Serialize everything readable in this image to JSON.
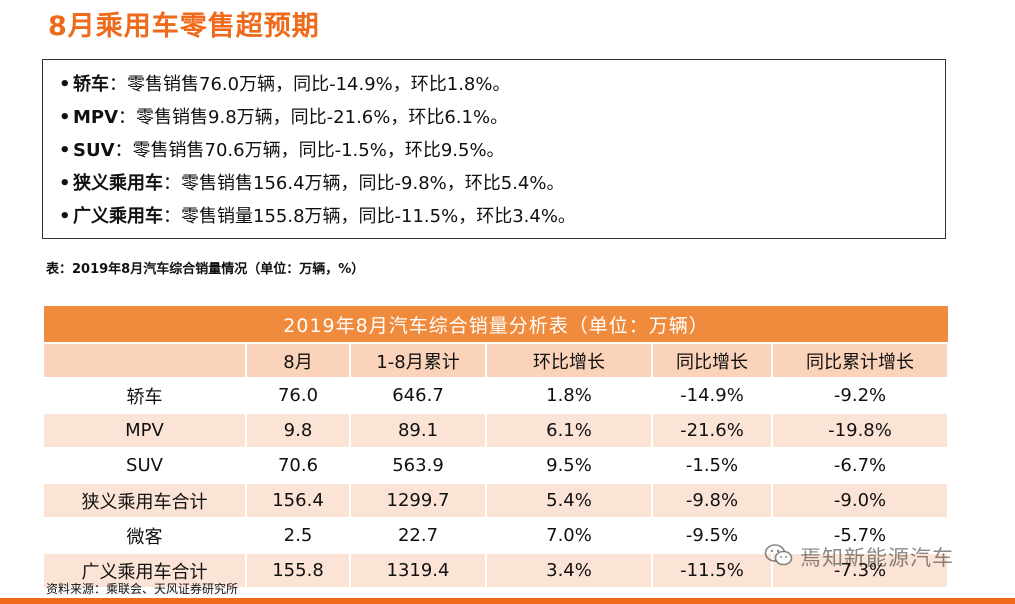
{
  "title": "8月乘用车零售超预期",
  "bullets": [
    {
      "label": "轿车",
      "text": "：零售销售76.0万辆，同比-14.9%，环比1.8%。"
    },
    {
      "label": "MPV",
      "text": "：零售销售9.8万辆，同比-21.6%，环比6.1%。"
    },
    {
      "label": "SUV",
      "text": "：零售销售70.6万辆，同比-1.5%，环比9.5%。"
    },
    {
      "label": "狭义乘用车",
      "text": "：零售销售156.4万辆，同比-9.8%，环比5.4%。"
    },
    {
      "label": "广义乘用车",
      "text": "：零售销量155.8万辆，同比-11.5%，环比3.4%。"
    }
  ],
  "bullet_marker": "•",
  "caption": "表：2019年8月汽车综合销量情况（单位：万辆，%）",
  "table": {
    "banner": "2019年8月汽车综合销量分析表（单位：万辆）",
    "headers": [
      "",
      "8月",
      "1-8月累计",
      "环比增长",
      "同比增长",
      "同比累计增长"
    ],
    "rows": [
      [
        "轿车",
        "76.0",
        "646.7",
        "1.8%",
        "-14.9%",
        "-9.2%"
      ],
      [
        "MPV",
        "9.8",
        "89.1",
        "6.1%",
        "-21.6%",
        "-19.8%"
      ],
      [
        "SUV",
        "70.6",
        "563.9",
        "9.5%",
        "-1.5%",
        "-6.7%"
      ],
      [
        "狭义乘用车合计",
        "156.4",
        "1299.7",
        "5.4%",
        "-9.8%",
        "-9.0%"
      ],
      [
        "微客",
        "2.5",
        "22.7",
        "7.0%",
        "-9.5%",
        "-5.7%"
      ],
      [
        "广义乘用车合计",
        "155.8",
        "1319.4",
        "3.4%",
        "-11.5%",
        "-7.3%"
      ]
    ]
  },
  "source": "资料来源：乘联会、天风证券研究所",
  "watermark": {
    "text": "焉知新能源汽车",
    "icon": "wechat-icon"
  },
  "colors": {
    "accent": "#ef6a1a",
    "banner": "#f08a3c",
    "header_row": "#fad3ba",
    "stripe": "#fbe4d6"
  }
}
